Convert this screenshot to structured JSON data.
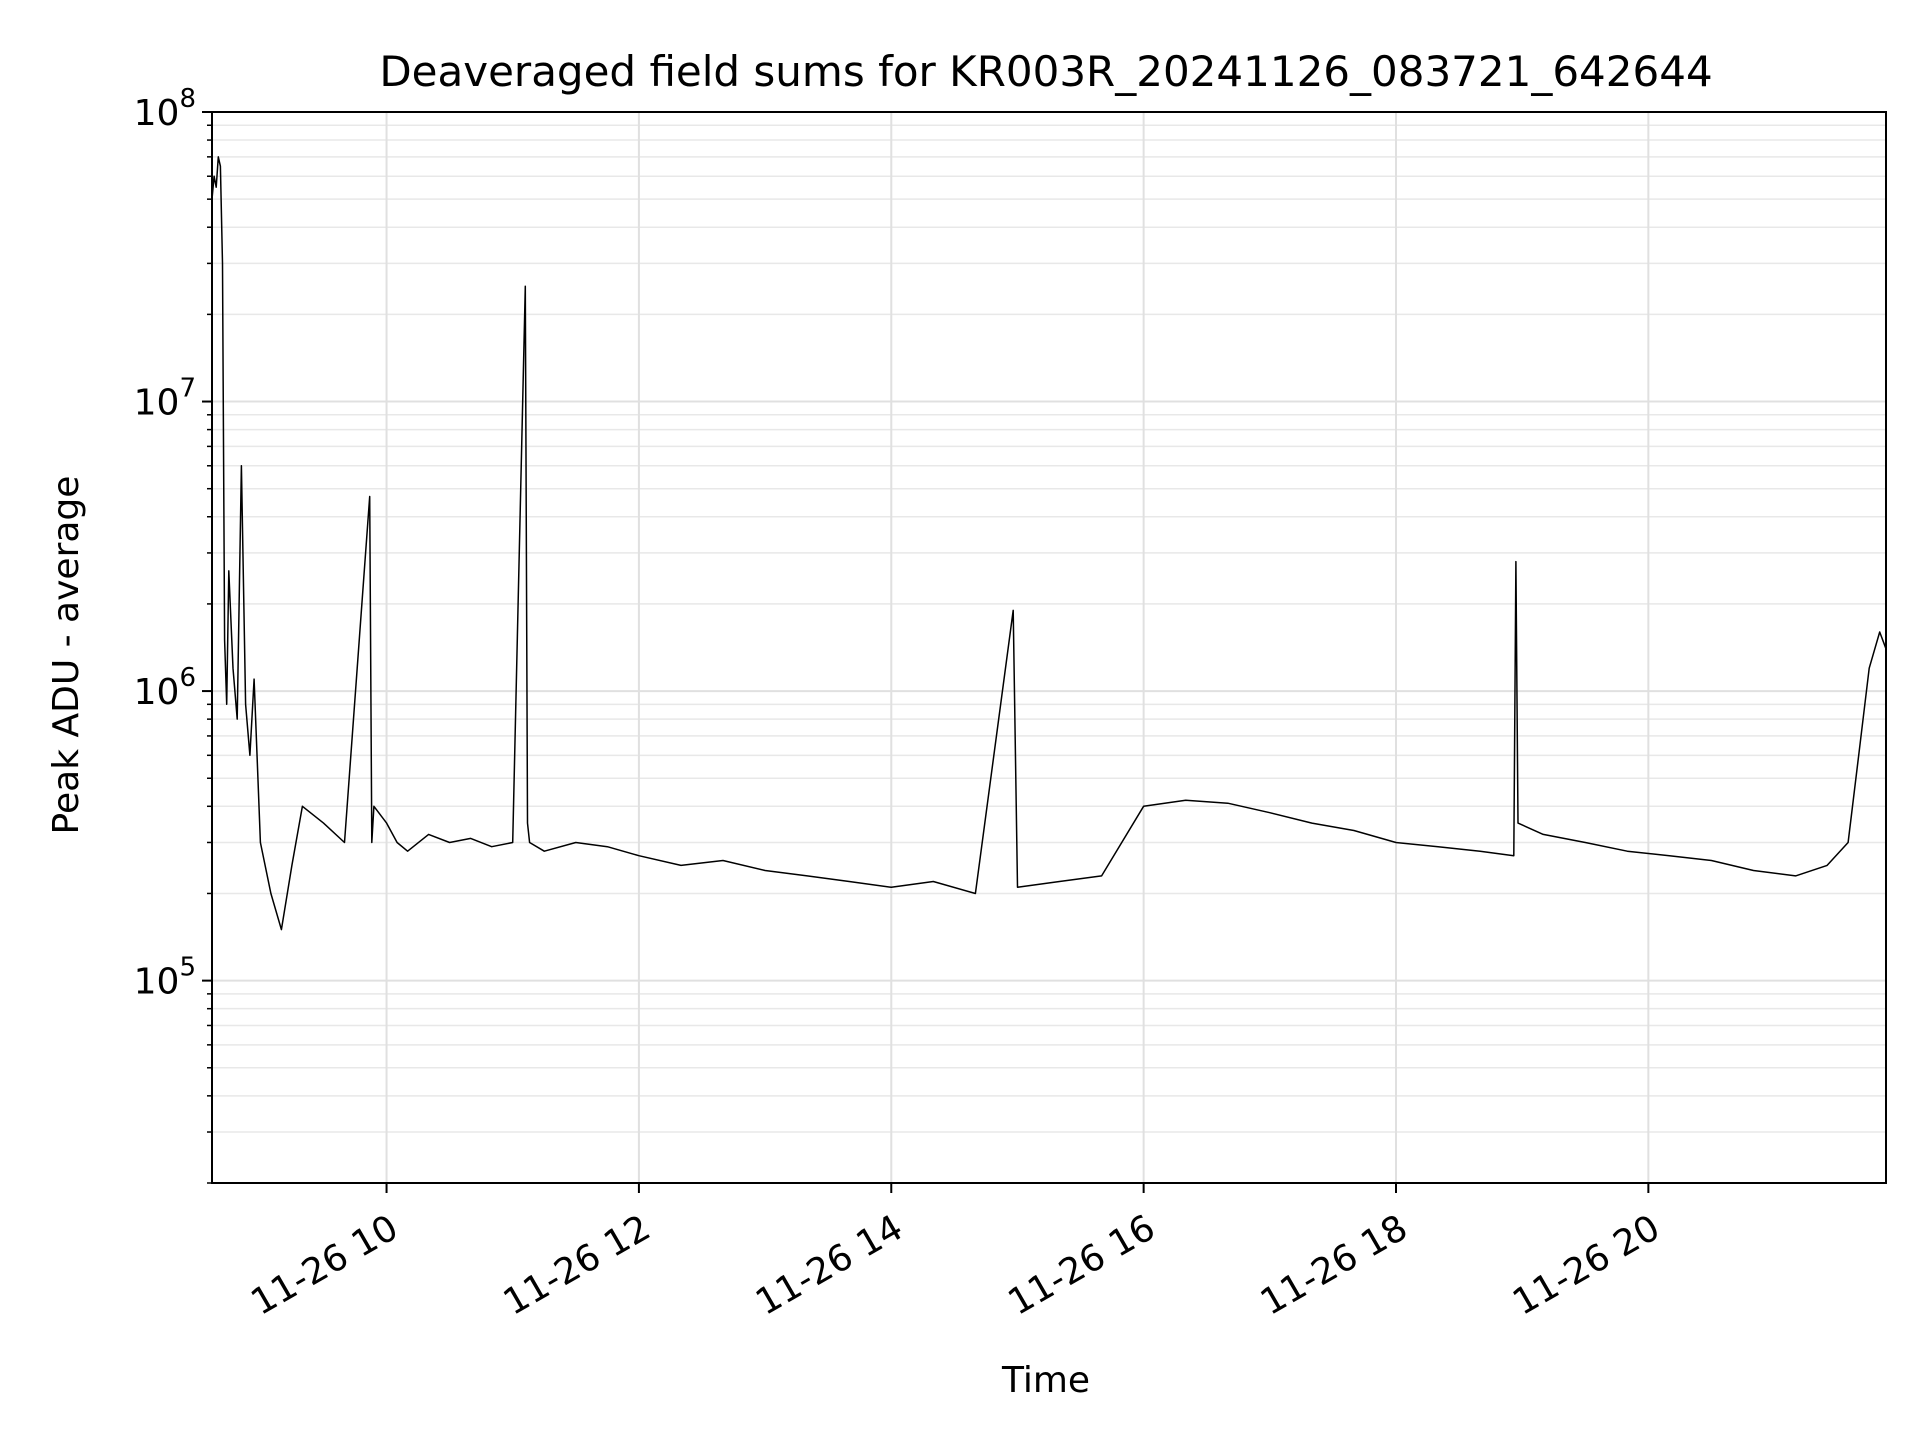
{
  "chart_data": {
    "type": "line",
    "title": "Deaveraged field sums for KR003R_20241126_083721_642644",
    "xlabel": "Time",
    "ylabel": "Peak ADU - average",
    "y_scale": "log",
    "ylim": [
      20000,
      100000000
    ],
    "xlim": [
      "2024-11-26 08:37",
      "2024-11-26 21:53"
    ],
    "grid": true,
    "line_color": "#000000",
    "x_tick_values": [
      "2024-11-26 10:00",
      "2024-11-26 12:00",
      "2024-11-26 14:00",
      "2024-11-26 16:00",
      "2024-11-26 18:00",
      "2024-11-26 20:00"
    ],
    "x_tick_labels": [
      "11-26 10",
      "11-26 12",
      "11-26 14",
      "11-26 16",
      "11-26 18",
      "11-26 20"
    ],
    "y_ticks": [
      {
        "value": 100000,
        "base": "10",
        "exp": "5"
      },
      {
        "value": 1000000,
        "base": "10",
        "exp": "6"
      },
      {
        "value": 10000000,
        "base": "10",
        "exp": "7"
      },
      {
        "value": 100000000,
        "base": "10",
        "exp": "8"
      }
    ],
    "series": [
      {
        "x": [
          "2024-11-26 08:37",
          "2024-11-26 08:38",
          "2024-11-26 08:39",
          "2024-11-26 08:40",
          "2024-11-26 08:41",
          "2024-11-26 08:42",
          "2024-11-26 08:43",
          "2024-11-26 08:44",
          "2024-11-26 08:45",
          "2024-11-26 08:47",
          "2024-11-26 08:49",
          "2024-11-26 08:51",
          "2024-11-26 08:53",
          "2024-11-26 08:55",
          "2024-11-26 08:57",
          "2024-11-26 09:00",
          "2024-11-26 09:05",
          "2024-11-26 09:10",
          "2024-11-26 09:15",
          "2024-11-26 09:20",
          "2024-11-26 09:30",
          "2024-11-26 09:40",
          "2024-11-26 09:52",
          "2024-11-26 09:53",
          "2024-11-26 09:54",
          "2024-11-26 10:00",
          "2024-11-26 10:05",
          "2024-11-26 10:10",
          "2024-11-26 10:20",
          "2024-11-26 10:30",
          "2024-11-26 10:40",
          "2024-11-26 10:50",
          "2024-11-26 11:00",
          "2024-11-26 11:06",
          "2024-11-26 11:07",
          "2024-11-26 11:08",
          "2024-11-26 11:15",
          "2024-11-26 11:30",
          "2024-11-26 11:45",
          "2024-11-26 12:00",
          "2024-11-26 12:20",
          "2024-11-26 12:40",
          "2024-11-26 13:00",
          "2024-11-26 13:20",
          "2024-11-26 13:40",
          "2024-11-26 14:00",
          "2024-11-26 14:20",
          "2024-11-26 14:40",
          "2024-11-26 14:58",
          "2024-11-26 15:00",
          "2024-11-26 15:20",
          "2024-11-26 15:40",
          "2024-11-26 16:00",
          "2024-11-26 16:20",
          "2024-11-26 16:40",
          "2024-11-26 17:00",
          "2024-11-26 17:20",
          "2024-11-26 17:40",
          "2024-11-26 18:00",
          "2024-11-26 18:20",
          "2024-11-26 18:40",
          "2024-11-26 18:56",
          "2024-11-26 18:57",
          "2024-11-26 18:58",
          "2024-11-26 19:10",
          "2024-11-26 19:30",
          "2024-11-26 19:50",
          "2024-11-26 20:10",
          "2024-11-26 20:30",
          "2024-11-26 20:50",
          "2024-11-26 21:10",
          "2024-11-26 21:25",
          "2024-11-26 21:35",
          "2024-11-26 21:40",
          "2024-11-26 21:45",
          "2024-11-26 21:50",
          "2024-11-26 21:53"
        ],
        "y": [
          50000000,
          60000000,
          55000000,
          70000000,
          65000000,
          30000000,
          1500000,
          900000,
          2600000,
          1200000,
          800000,
          6000000,
          900000,
          600000,
          1100000,
          300000,
          200000,
          150000,
          250000,
          400000,
          350000,
          300000,
          4700000,
          300000,
          400000,
          350000,
          300000,
          280000,
          320000,
          300000,
          310000,
          290000,
          300000,
          25000000,
          350000,
          300000,
          280000,
          300000,
          290000,
          270000,
          250000,
          260000,
          240000,
          230000,
          220000,
          210000,
          220000,
          200000,
          1900000,
          210000,
          220000,
          230000,
          400000,
          420000,
          410000,
          380000,
          350000,
          330000,
          300000,
          290000,
          280000,
          270000,
          2800000,
          350000,
          320000,
          300000,
          280000,
          270000,
          260000,
          240000,
          230000,
          250000,
          300000,
          600000,
          1200000,
          1600000,
          1400000
        ]
      }
    ]
  }
}
